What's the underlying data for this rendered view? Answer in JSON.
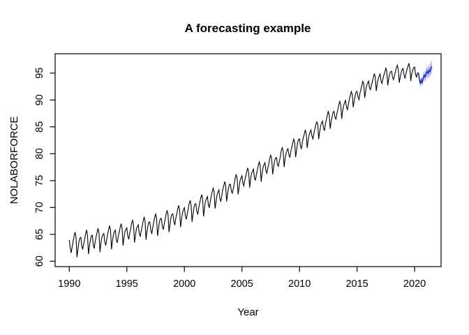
{
  "figure": {
    "background": "#ffffff",
    "box_color": "#000000"
  },
  "chart_data": {
    "type": "line",
    "title": "A forecasting example",
    "xlabel": "Year",
    "ylabel": "NOLABORFORCE",
    "xlim": [
      1988.77,
      2022.3
    ],
    "ylim": [
      59.0,
      98.6
    ],
    "x_ticks": [
      1990,
      1995,
      2000,
      2005,
      2010,
      2015,
      2020
    ],
    "y_ticks": [
      60,
      65,
      70,
      75,
      80,
      85,
      90,
      95
    ],
    "grid": false,
    "legend": "none",
    "series": [
      {
        "name": "observed",
        "color": "#000000",
        "frequency": 12,
        "start": 1990.0,
        "end": 2020.25,
        "yearly_levels": [
          63.3,
          63.7,
          64.1,
          64.6,
          65.0,
          65.6,
          66.1,
          66.7,
          67.4,
          68.2,
          69.2,
          70.1,
          71.3,
          72.5,
          73.8,
          75.2,
          76.4,
          77.6,
          78.8,
          80.4,
          82.2,
          83.8,
          85.4,
          87.3,
          89.3,
          91.2,
          92.9,
          94.2,
          94.9,
          95.3,
          95.6
        ],
        "seasonal_pattern": [
          0.5,
          -0.7,
          -1.2,
          -0.4,
          0.2,
          0.8,
          1.3,
          0.6,
          -1.9,
          -0.8,
          0.0,
          0.4
        ],
        "seasonal_scale_start": 1.45,
        "seasonal_scale_end": 1.0,
        "jitter_amplitude": 0.3
      },
      {
        "name": "forecast",
        "color": "#2133cc",
        "frequency": 12,
        "start": 2020.3333,
        "mean": [
          95.0,
          93.8,
          93.0,
          93.7,
          93.3,
          94.1,
          94.6,
          94.3,
          94.9,
          95.3,
          95.0,
          95.5,
          95.3,
          95.9,
          96.2
        ],
        "lo95": [
          94.55,
          93.25,
          92.35,
          92.98,
          92.52,
          93.26,
          93.7,
          93.35,
          93.9,
          94.25,
          93.9,
          94.36,
          94.12,
          94.68,
          94.94
        ],
        "hi95": [
          95.45,
          94.35,
          93.65,
          94.42,
          94.08,
          94.94,
          95.5,
          95.25,
          95.9,
          96.35,
          96.1,
          96.64,
          96.48,
          97.12,
          97.46
        ],
        "band_colors": [
          "#c9cff2",
          "#a6b1e8"
        ]
      }
    ]
  }
}
